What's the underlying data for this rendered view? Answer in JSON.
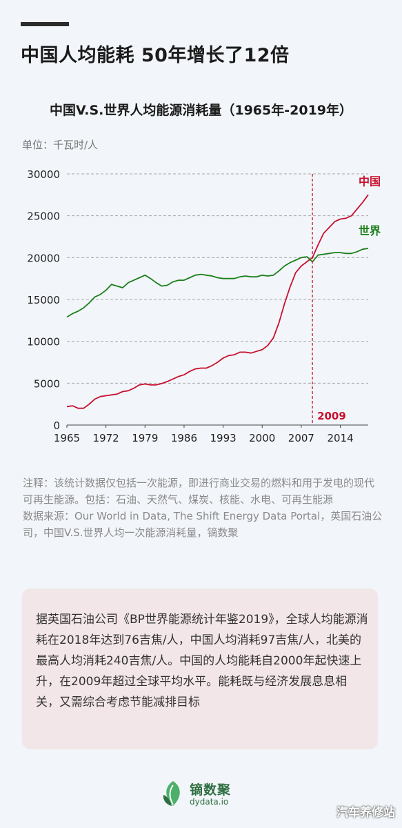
{
  "header": {
    "headline": "中国人均能耗 50年增长了12倍"
  },
  "chart_data": {
    "type": "line",
    "title": "中国V.S.世界人均能源消耗量（1965年-2019年）",
    "unit": "单位：千瓦时/人",
    "ylim": [
      0,
      30000
    ],
    "xlim": [
      1965,
      2019
    ],
    "yticks": [
      0,
      5000,
      10000,
      15000,
      20000,
      25000,
      30000
    ],
    "ytick_labels": [
      "0",
      "5000",
      "10000",
      "15000",
      "20000",
      "25000",
      "30000"
    ],
    "xticks": [
      1965,
      1972,
      1979,
      1986,
      1993,
      2000,
      2007,
      2014
    ],
    "xtick_labels": [
      "1965",
      "1972",
      "1979",
      "1986",
      "1993",
      "2000",
      "2007",
      "2014"
    ],
    "grid": true,
    "annotation": {
      "x": 2009,
      "label": "2009"
    },
    "series": [
      {
        "name": "中国",
        "color": "#c8102e",
        "x": [
          1965,
          1966,
          1967,
          1968,
          1969,
          1970,
          1971,
          1972,
          1973,
          1974,
          1975,
          1976,
          1977,
          1978,
          1979,
          1980,
          1981,
          1982,
          1983,
          1984,
          1985,
          1986,
          1987,
          1988,
          1989,
          1990,
          1991,
          1992,
          1993,
          1994,
          1995,
          1996,
          1997,
          1998,
          1999,
          2000,
          2001,
          2002,
          2003,
          2004,
          2005,
          2006,
          2007,
          2008,
          2009,
          2010,
          2011,
          2012,
          2013,
          2014,
          2015,
          2016,
          2017,
          2018,
          2019
        ],
        "values": [
          2200,
          2300,
          2000,
          2000,
          2500,
          3100,
          3400,
          3500,
          3600,
          3700,
          4000,
          4100,
          4400,
          4800,
          4900,
          4800,
          4800,
          4950,
          5200,
          5500,
          5800,
          6000,
          6400,
          6700,
          6800,
          6800,
          7100,
          7500,
          8000,
          8300,
          8400,
          8700,
          8700,
          8600,
          8800,
          9000,
          9500,
          10400,
          12200,
          14500,
          16500,
          18200,
          19000,
          19500,
          20000,
          21500,
          22900,
          23600,
          24300,
          24600,
          24700,
          25000,
          25800,
          26600,
          27500
        ]
      },
      {
        "name": "世界",
        "color": "#1a7f1a",
        "x": [
          1965,
          1966,
          1967,
          1968,
          1969,
          1970,
          1971,
          1972,
          1973,
          1974,
          1975,
          1976,
          1977,
          1978,
          1979,
          1980,
          1981,
          1982,
          1983,
          1984,
          1985,
          1986,
          1987,
          1988,
          1989,
          1990,
          1991,
          1992,
          1993,
          1994,
          1995,
          1996,
          1997,
          1998,
          1999,
          2000,
          2001,
          2002,
          2003,
          2004,
          2005,
          2006,
          2007,
          2008,
          2009,
          2010,
          2011,
          2012,
          2013,
          2014,
          2015,
          2016,
          2017,
          2018,
          2019
        ],
        "values": [
          12900,
          13300,
          13600,
          14000,
          14600,
          15300,
          15600,
          16100,
          16800,
          16600,
          16400,
          17000,
          17300,
          17600,
          17900,
          17500,
          17000,
          16600,
          16700,
          17100,
          17300,
          17300,
          17600,
          17900,
          18000,
          17900,
          17800,
          17600,
          17500,
          17500,
          17500,
          17700,
          17800,
          17700,
          17700,
          17900,
          17800,
          17900,
          18400,
          19000,
          19400,
          19700,
          20000,
          20100,
          19500,
          20300,
          20400,
          20500,
          20600,
          20600,
          20500,
          20500,
          20700,
          21000,
          21100
        ]
      }
    ]
  },
  "notes": {
    "line1": "注释：该统计数据仅包括一次能源，即进行商业交易的燃料和用于发电的现代可再生能源。包括：石油、天然气、煤炭、核能、水电、可再生能源",
    "line2": "数据来源：Our World in Data, The Shift Energy Data Portal，英国石油公司，中国V.S.世界人均一次能源消耗量，镝数聚"
  },
  "summary": "据英国石油公司《BP世界能源统计年鉴2019》，全球人均能源消耗在2018年达到76吉焦/人，中国人均消耗97吉焦/人，北美的最高人均消耗240吉焦/人。中国的人均能耗自2000年起快速上升，在2009年超过全球平均水平。能耗既与经济发展息息相关，又需综合考虑节能减排目标",
  "logo": {
    "name_cn": "镝数聚",
    "name_en": "dydata.io",
    "color": "#2f6f43"
  },
  "watermark": "汽车养修站"
}
